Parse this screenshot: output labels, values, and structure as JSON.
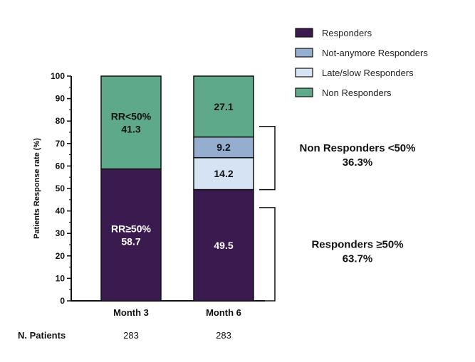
{
  "chart_data": {
    "type": "bar",
    "stacked": true,
    "ylabel": "Patients Response rate (%)",
    "ylim": [
      0,
      100
    ],
    "yticks": [
      0,
      10,
      20,
      30,
      40,
      50,
      60,
      70,
      80,
      90,
      100
    ],
    "categories": [
      "Month 3",
      "Month 6"
    ],
    "series": [
      {
        "name": "Responders",
        "color": "#3b1a4f",
        "values": [
          58.7,
          49.5
        ]
      },
      {
        "name": "Late/slow Responders",
        "color": "#d6e3f3",
        "values": [
          0,
          14.2
        ]
      },
      {
        "name": "Not-anymore Responders",
        "color": "#95aed0",
        "values": [
          0,
          9.2
        ]
      },
      {
        "name": "Non Responders",
        "color": "#5ea989",
        "values": [
          41.3,
          27.1
        ]
      }
    ],
    "legend": {
      "placement": "top-right",
      "order": [
        "Responders",
        "Not-anymore Responders",
        "Late/slow Responders",
        "Non Responders"
      ]
    },
    "segment_labels": [
      {
        "category": "Month 3",
        "series": "Responders",
        "text": [
          "RR≥50%",
          "58.7"
        ],
        "color": "#ffffff"
      },
      {
        "category": "Month 3",
        "series": "Non Responders",
        "text": [
          "RR<50%",
          "41.3"
        ],
        "color": "#111111"
      },
      {
        "category": "Month 6",
        "series": "Responders",
        "text": [
          "49.5"
        ],
        "color": "#ffffff"
      },
      {
        "category": "Month 6",
        "series": "Late/slow Responders",
        "text": [
          "14.2"
        ],
        "color": "#111111"
      },
      {
        "category": "Month 6",
        "series": "Not-anymore Responders",
        "text": [
          "9.2"
        ],
        "color": "#111111"
      },
      {
        "category": "Month 6",
        "series": "Non Responders",
        "text": [
          "27.1"
        ],
        "color": "#111111"
      }
    ],
    "annotations": [
      {
        "name": "non-responders-bracket",
        "from": 49.5,
        "to": 77.6,
        "lines": [
          "Non Responders <50%",
          "36.3%"
        ]
      },
      {
        "name": "responders-bracket",
        "from": 0,
        "to": 41.5,
        "lines": [
          "Responders ≥50%",
          "63.7%"
        ]
      }
    ],
    "patients": {
      "title": "N. Patients",
      "values": [
        "283",
        "283"
      ]
    }
  }
}
